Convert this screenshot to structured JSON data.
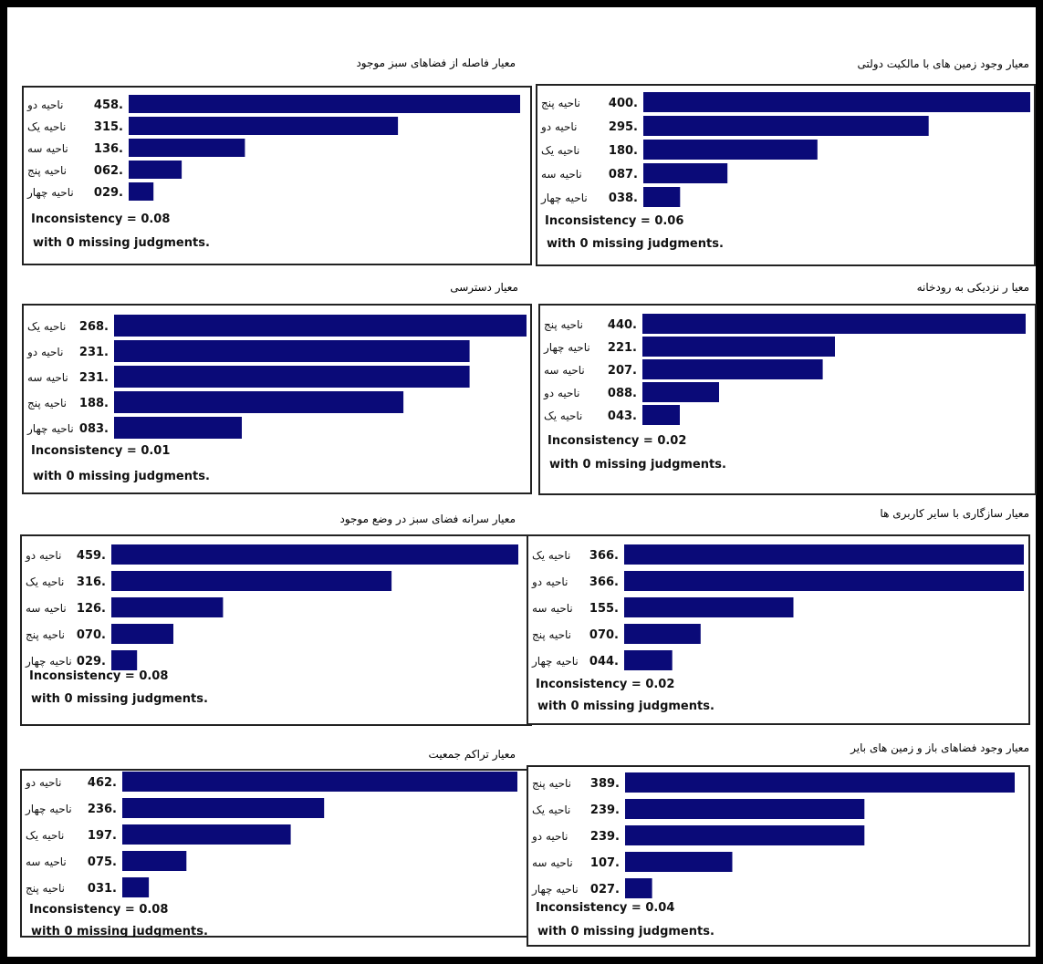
{
  "chart_data": [
    {
      "type": "bar",
      "title": "معیار فاصله از فضاهای سبز موجود",
      "categories": [
        "ناحیه دو",
        "ناحیه یک",
        "ناحیه سه",
        "ناحیه پنج",
        "ناحیه چهار"
      ],
      "values": [
        0.458,
        0.315,
        0.136,
        0.062,
        0.029
      ],
      "value_labels": [
        "458.",
        "315.",
        "136.",
        "062.",
        "029."
      ],
      "inconsistency": "Inconsistency = 0.08",
      "missing": "with 0  missing judgments.",
      "bar_color": "#0a0a78"
    },
    {
      "type": "bar",
      "title": "معیار وجود زمین های با مالکیت دولتی",
      "categories": [
        "ناحیه پنج",
        "ناحیه دو",
        "ناحیه یک",
        "ناحیه سه",
        "ناحیه چهار"
      ],
      "values": [
        0.4,
        0.295,
        0.18,
        0.087,
        0.038
      ],
      "value_labels": [
        "400.",
        "295.",
        "180.",
        "087.",
        "038."
      ],
      "inconsistency": "Inconsistency = 0.06",
      "missing": "with 0  missing judgments.",
      "bar_color": "#0a0a78"
    },
    {
      "type": "bar",
      "title": "معیار دسترسی",
      "categories": [
        "ناحیه یک",
        "ناحیه دو",
        "ناحیه سه",
        "ناحیه پنج",
        "ناحیه چهار"
      ],
      "values": [
        0.268,
        0.231,
        0.231,
        0.188,
        0.083
      ],
      "value_labels": [
        "268.",
        "231.",
        "231.",
        "188.",
        "083."
      ],
      "inconsistency": "Inconsistency = 0.01",
      "missing": "with 0  missing judgments.",
      "bar_color": "#0a0a78"
    },
    {
      "type": "bar",
      "title": "معیا ر نزدیکی به رودخانه",
      "categories": [
        "ناحیه پنج",
        "ناحیه چهار",
        "ناحیه سه",
        "ناحیه دو",
        "ناحیه یک"
      ],
      "values": [
        0.44,
        0.221,
        0.207,
        0.088,
        0.043
      ],
      "value_labels": [
        "440.",
        "221.",
        "207.",
        "088.",
        "043."
      ],
      "inconsistency": "Inconsistency = 0.02",
      "missing": "with 0  missing judgments.",
      "bar_color": "#0a0a78"
    },
    {
      "type": "bar",
      "title": "معیار سرانه فضای سبز در وضع موجود",
      "categories": [
        "ناحیه دو",
        "ناحیه یک",
        "ناحیه سه",
        "ناحیه پنج",
        "ناحیه چهار"
      ],
      "values": [
        0.459,
        0.316,
        0.126,
        0.07,
        0.029
      ],
      "value_labels": [
        "459.",
        "316.",
        "126.",
        "070.",
        "029."
      ],
      "inconsistency": "Inconsistency = 0.08",
      "missing": "with 0  missing judgments.",
      "bar_color": "#0a0a78"
    },
    {
      "type": "bar",
      "title": "معیار سازگاری با سایر کاربری ها",
      "categories": [
        "ناحیه یک",
        "ناحیه دو",
        "ناحیه سه",
        "ناحیه پنج",
        "ناحیه چهار"
      ],
      "values": [
        0.366,
        0.366,
        0.155,
        0.07,
        0.044
      ],
      "value_labels": [
        "366.",
        "366.",
        "155.",
        "070.",
        "044."
      ],
      "inconsistency": "Inconsistency = 0.02",
      "missing": "with 0  missing judgments.",
      "bar_color": "#0a0a78"
    },
    {
      "type": "bar",
      "title": "معیار تراکم جمعیت",
      "categories": [
        "ناحیه دو",
        "ناحیه چهار",
        "ناحیه یک",
        "ناحیه سه",
        "ناحیه پنج"
      ],
      "values": [
        0.462,
        0.236,
        0.197,
        0.075,
        0.031
      ],
      "value_labels": [
        "462.",
        "236.",
        "197.",
        "075.",
        "031."
      ],
      "inconsistency": "Inconsistency = 0.08",
      "missing": "with 0  missing judgments.",
      "bar_color": "#0a0a78"
    },
    {
      "type": "bar",
      "title": "معیار وجود فضاهای باز و زمین های بایر",
      "categories": [
        "ناحیه پنج",
        "ناحیه یک",
        "ناحیه دو",
        "ناحیه سه",
        "ناحیه چهار"
      ],
      "values": [
        0.389,
        0.239,
        0.239,
        0.107,
        0.027
      ],
      "value_labels": [
        "389.",
        "239.",
        "239.",
        "107.",
        "027."
      ],
      "inconsistency": "Inconsistency = 0.04",
      "missing": "with 0  missing judgments.",
      "bar_color": "#0a0a78"
    }
  ]
}
